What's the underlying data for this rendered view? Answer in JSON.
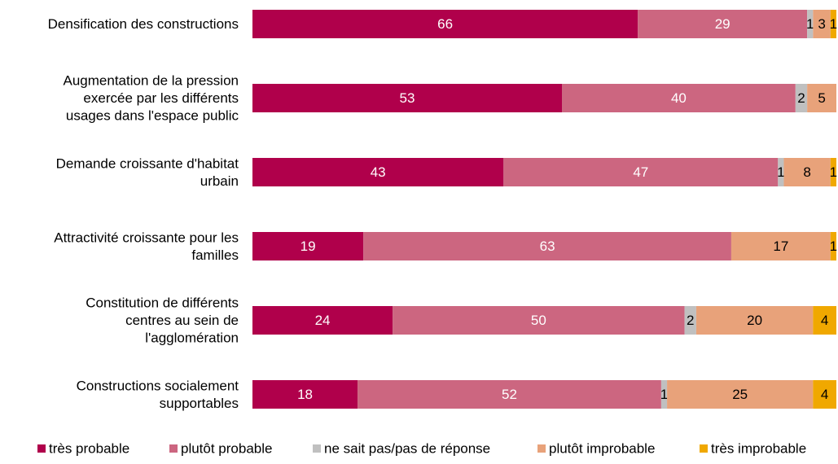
{
  "chart_data": {
    "type": "bar",
    "orientation": "horizontal",
    "stacked": true,
    "categories": [
      "Densification des constructions",
      "Augmentation de la pression exercée par les différents usages dans l'espace public",
      "Demande croissante d'habitat urbain",
      "Attractivité croissante pour les familles",
      "Constitution de différents centres au sein de l'agglomération",
      "Constructions socialement supportables"
    ],
    "category_lines": [
      [
        "Densification des constructions"
      ],
      [
        "Augmentation de la pression",
        "exercée par les différents",
        "usages dans l'espace public"
      ],
      [
        "Demande croissante d'habitat",
        "urbain"
      ],
      [
        "Attractivité croissante pour les",
        "familles"
      ],
      [
        "Constitution de différents",
        "centres au sein de",
        "l'agglomération"
      ],
      [
        "Constructions socialement",
        "supportables"
      ]
    ],
    "series": [
      {
        "name": "très probable",
        "color": "#b0004b",
        "label_color": "#ffffff",
        "values": [
          66,
          53,
          43,
          19,
          24,
          18
        ]
      },
      {
        "name": "plutôt probable",
        "color": "#cc6680",
        "label_color": "#ffffff",
        "values": [
          29,
          40,
          47,
          63,
          50,
          52
        ]
      },
      {
        "name": "ne sait pas/pas de réponse",
        "color": "#c0c0c0",
        "label_color": "#000000",
        "values": [
          1,
          2,
          1,
          0,
          2,
          1
        ]
      },
      {
        "name": "plutôt improbable",
        "color": "#e8a27a",
        "label_color": "#000000",
        "values": [
          3,
          5,
          8,
          17,
          20,
          25
        ]
      },
      {
        "name": "très improbable",
        "color": "#f0a800",
        "label_color": "#000000",
        "values": [
          1,
          0,
          1,
          1,
          4,
          4
        ]
      }
    ],
    "xlim": [
      0,
      100
    ],
    "grid": false,
    "legend": "bottom",
    "title": "",
    "xlabel": "",
    "ylabel": ""
  }
}
